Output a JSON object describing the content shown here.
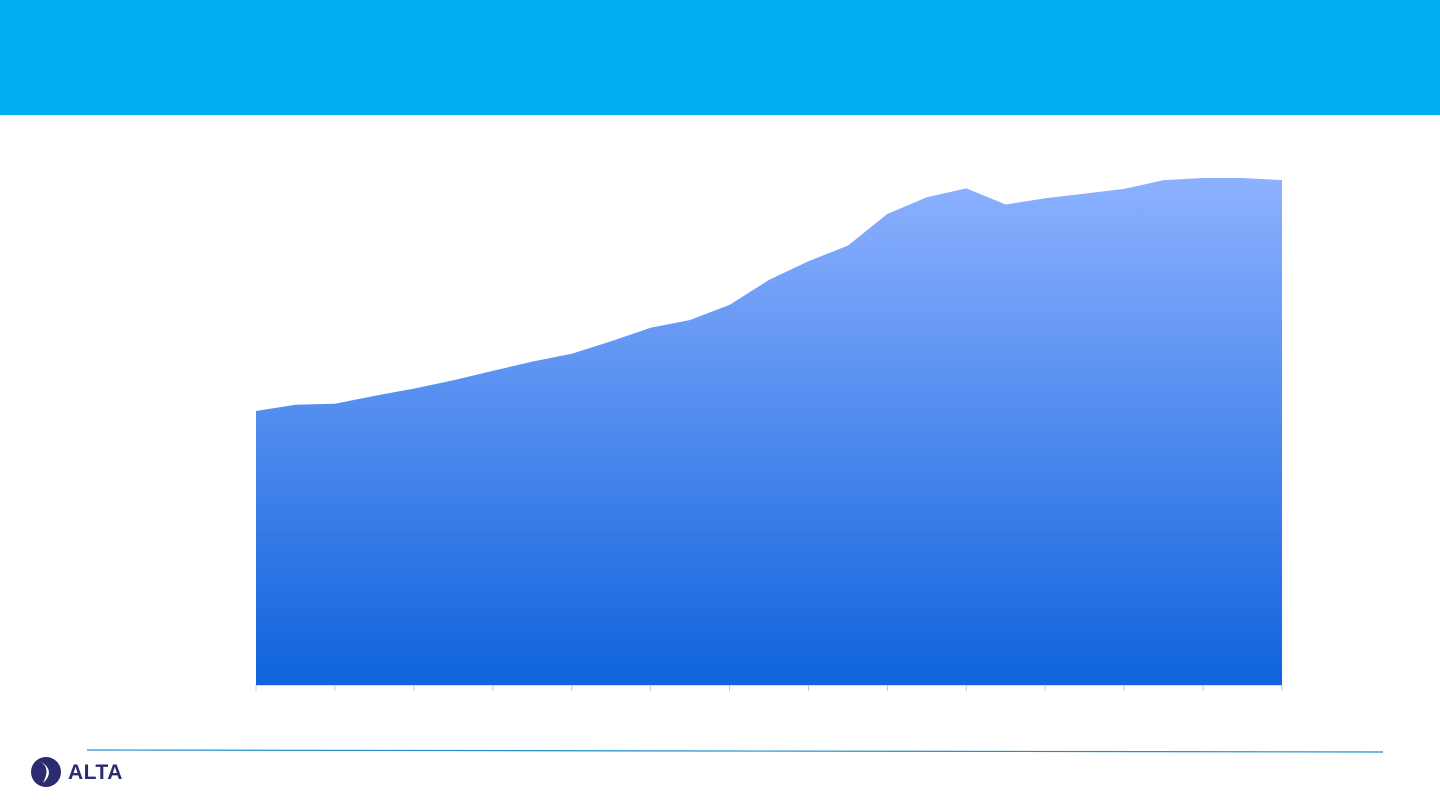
{
  "brand": {
    "name": "ALTA",
    "header_color": "#00B0F0",
    "rule_color": "#1E8FC8",
    "logo_dark": "#2B2B6F",
    "logo_light": "#FFFFFF"
  },
  "chart_data": {
    "type": "area",
    "title": "",
    "xlabel": "",
    "ylabel": "",
    "grid": false,
    "legend": "none",
    "x": [
      1,
      2,
      3,
      4,
      5,
      6,
      7,
      8,
      9,
      10,
      11,
      12,
      13,
      14,
      15,
      16,
      17,
      18,
      19,
      20,
      21,
      22,
      23,
      24,
      25,
      26,
      27
    ],
    "ylim": [
      0,
      100
    ],
    "series": [
      {
        "fill_top": "#8DB1FF",
        "fill_bottom": "#0F63DC",
        "values": [
          52.7,
          53.9,
          54.1,
          55.6,
          57.0,
          58.6,
          60.4,
          62.2,
          63.7,
          66.1,
          68.7,
          70.2,
          73.1,
          77.9,
          81.5,
          84.5,
          90.6,
          93.8,
          95.5,
          92.4,
          93.6,
          94.5,
          95.4,
          97.1,
          97.5,
          97.5,
          97.1
        ]
      }
    ],
    "x_tick_count": 14
  }
}
